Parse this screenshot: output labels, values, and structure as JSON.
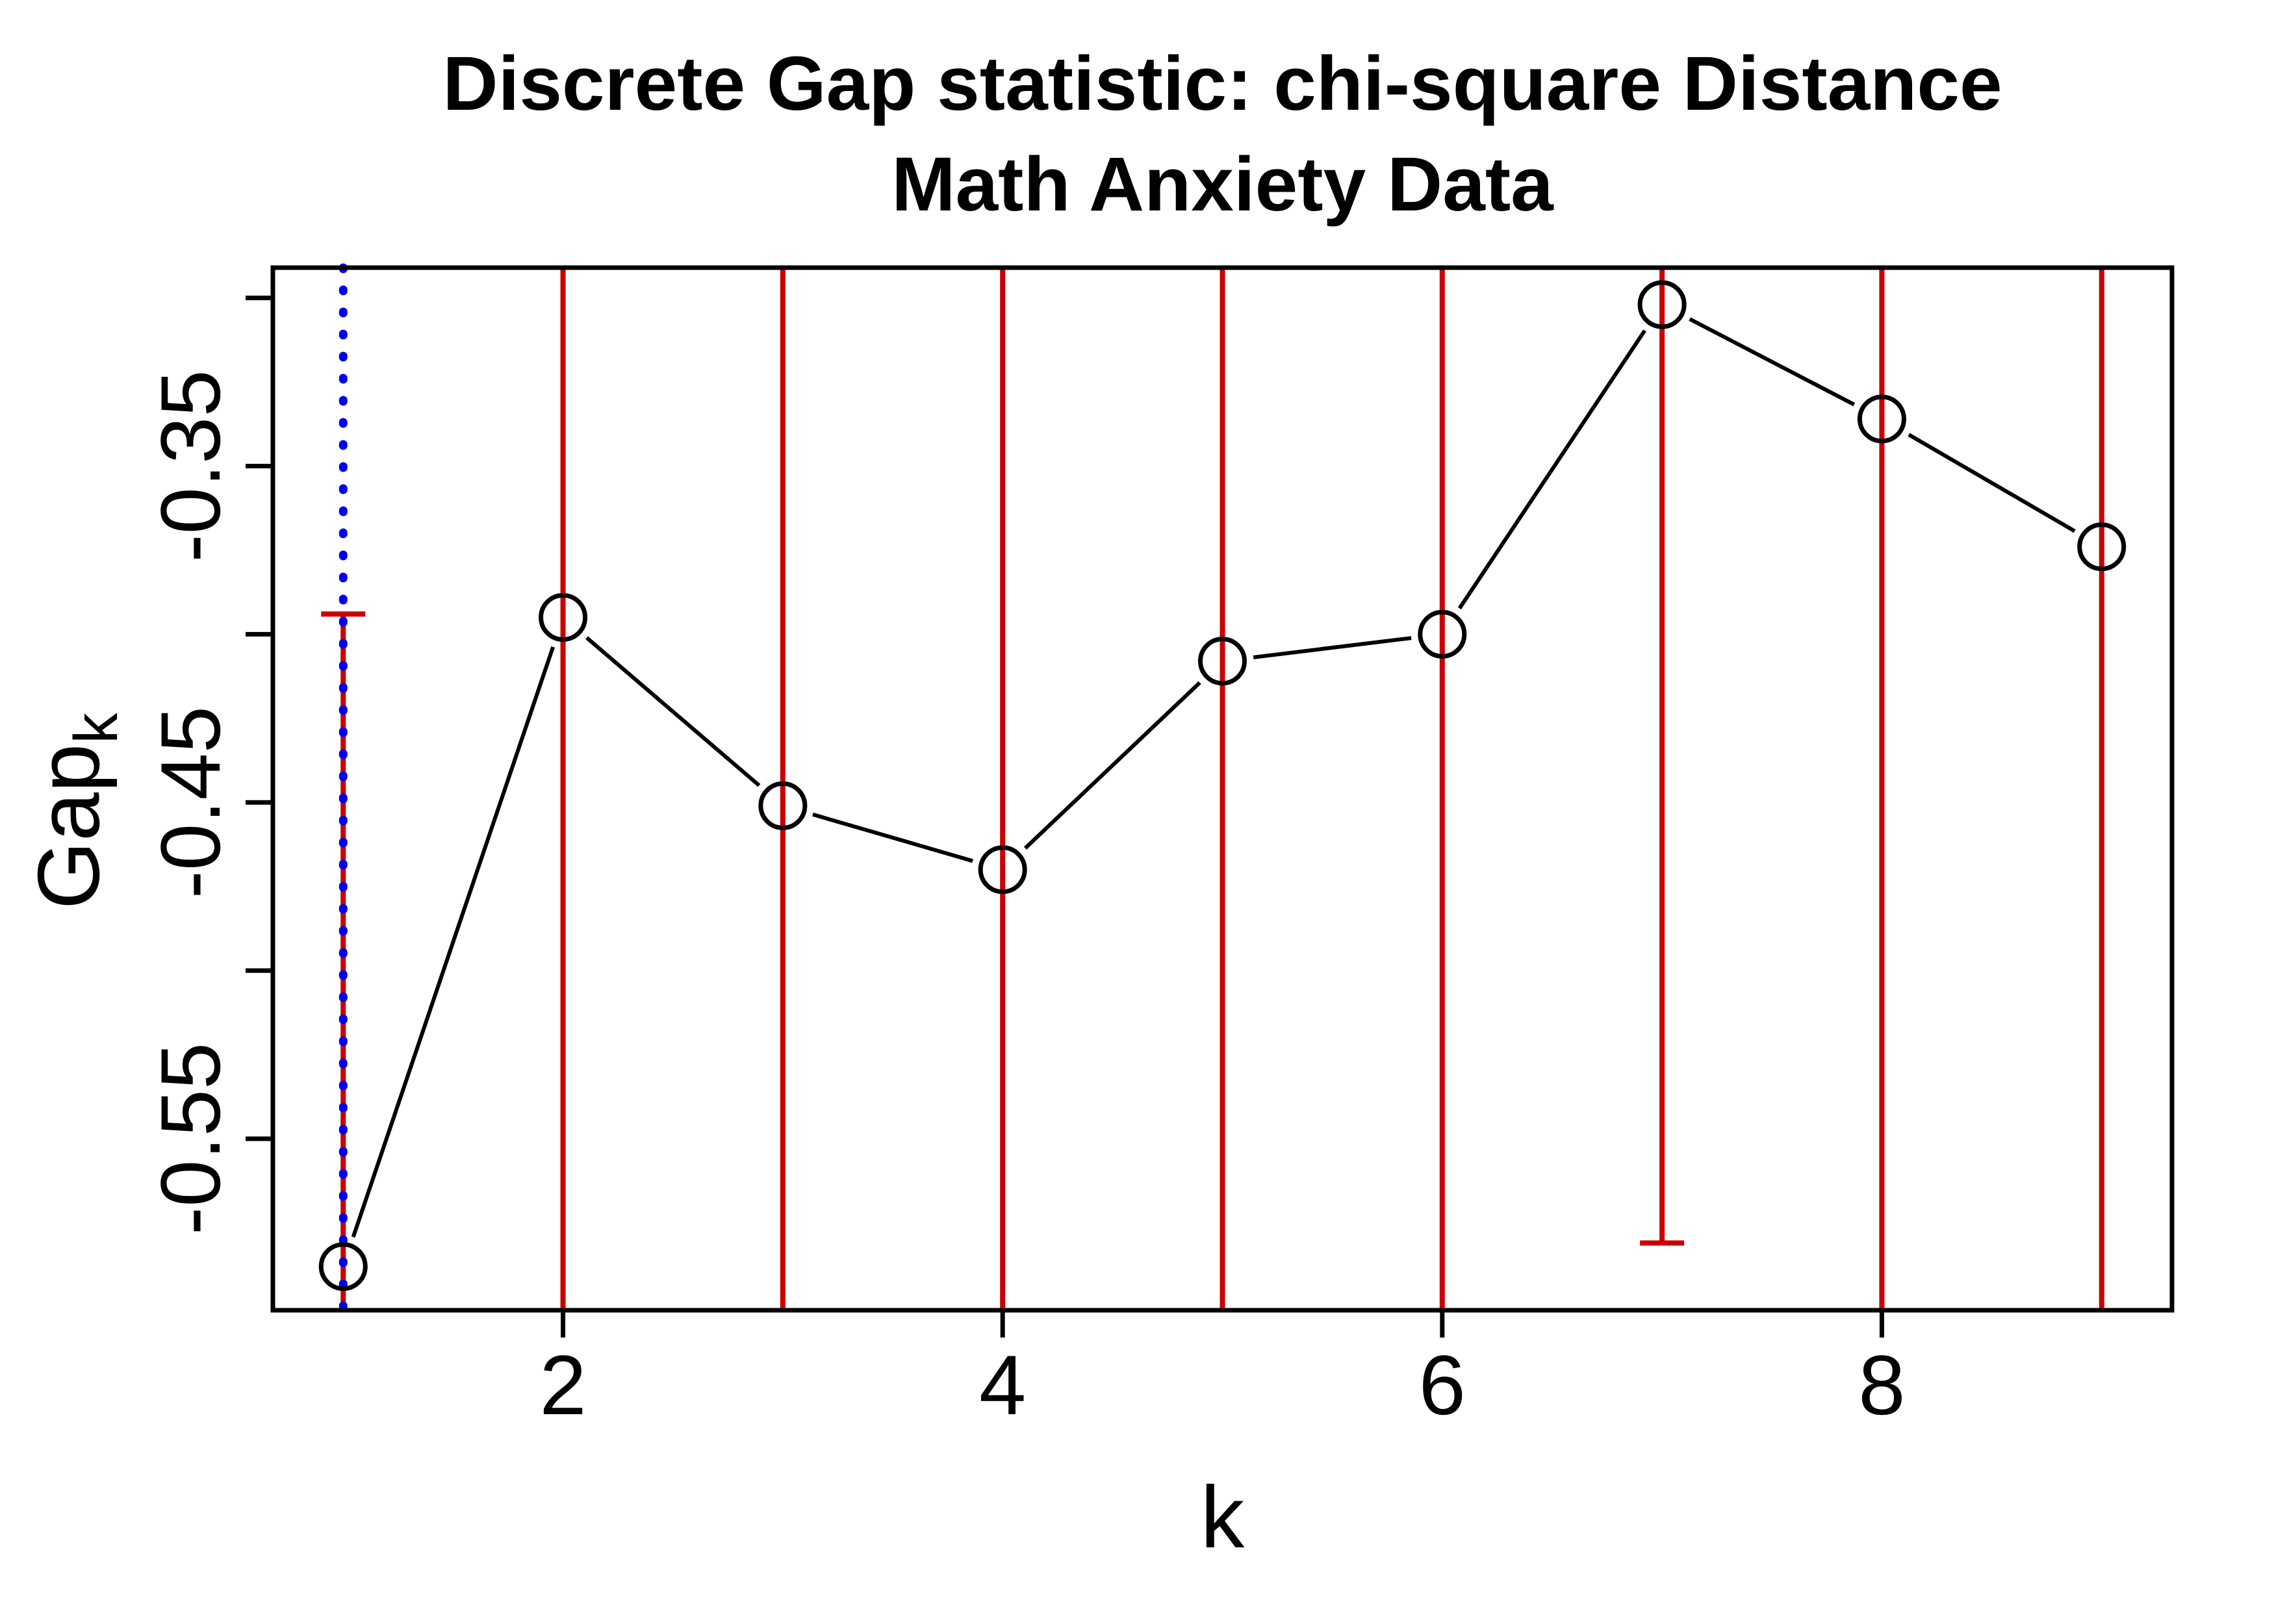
{
  "title": {
    "line1": "Discrete Gap statistic: chi-square Distance",
    "line2": "Math Anxiety Data"
  },
  "labels": {
    "xlabel": "k",
    "ylabel_main": "Gap",
    "ylabel_sub": "k"
  },
  "chart_data": {
    "type": "line",
    "title": "Discrete Gap statistic: chi-square Distance — Math Anxiety Data",
    "xlabel": "k",
    "ylabel": "Gap_k",
    "x": [
      1,
      2,
      3,
      4,
      5,
      6,
      7,
      8,
      9
    ],
    "y": [
      -0.588,
      -0.395,
      -0.451,
      -0.47,
      -0.408,
      -0.4,
      -0.302,
      -0.336,
      -0.374
    ],
    "error_hi": [
      -0.394,
      null,
      null,
      null,
      null,
      null,
      null,
      null,
      null
    ],
    "error_lo": [
      null,
      null,
      null,
      null,
      null,
      null,
      -0.581,
      null,
      null
    ],
    "xlim": [
      0.68,
      9.32
    ],
    "ylim": [
      -0.601,
      -0.291
    ],
    "xticks": [
      {
        "v": 2,
        "label": "2"
      },
      {
        "v": 4,
        "label": "4"
      },
      {
        "v": 6,
        "label": "6"
      },
      {
        "v": 8,
        "label": "8"
      }
    ],
    "yticks": [
      {
        "v": -0.3,
        "label": ""
      },
      {
        "v": -0.35,
        "label": "-0.35"
      },
      {
        "v": -0.4,
        "label": ""
      },
      {
        "v": -0.45,
        "label": "-0.45"
      },
      {
        "v": -0.5,
        "label": ""
      },
      {
        "v": -0.55,
        "label": "-0.55"
      }
    ],
    "vline_x": 1,
    "marker": "open-circle",
    "legend": null,
    "grid": false,
    "colors": {
      "series": "#000000",
      "errorbar": "#cc0000",
      "vline": "#0000ee",
      "axis": "#000000",
      "background": "#ffffff"
    }
  }
}
